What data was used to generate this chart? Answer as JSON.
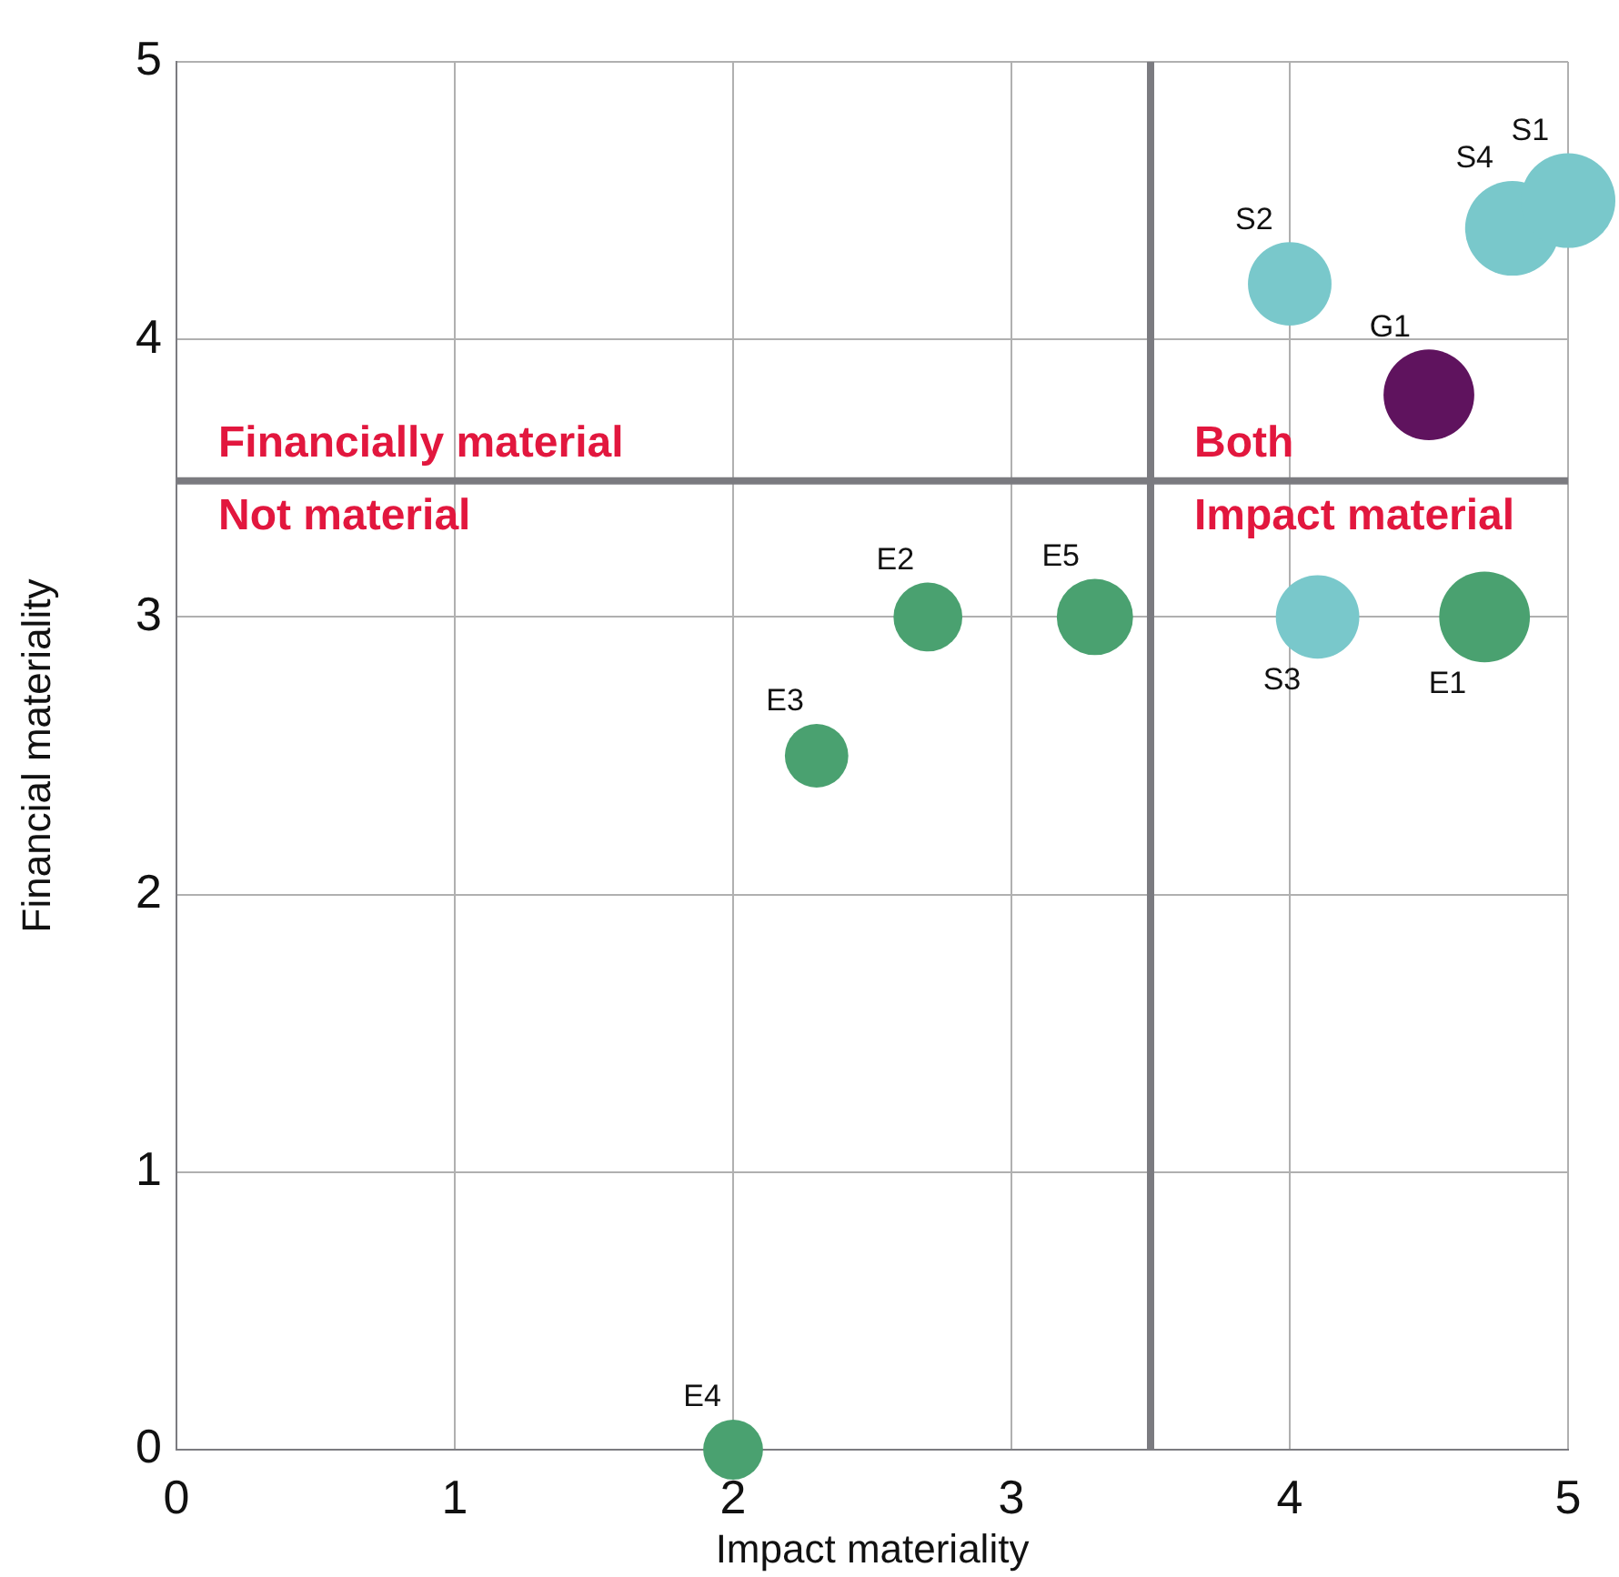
{
  "chart_data": {
    "type": "bubble",
    "xlabel": "Impact materiality",
    "ylabel": "Financial materiality",
    "xlim": [
      0,
      5
    ],
    "ylim": [
      0,
      5
    ],
    "xticks": [
      0,
      1,
      2,
      3,
      4,
      5
    ],
    "yticks": [
      0,
      1,
      2,
      3,
      4,
      5
    ],
    "grid": true,
    "legend": false,
    "series": [
      {
        "name": "S1",
        "color": "#79c8cb",
        "x": [
          5.0
        ],
        "values": [
          4.5
        ],
        "sizes": [
          1
        ]
      },
      {
        "name": "S4",
        "color": "#79c8cb",
        "x": [
          4.8
        ],
        "values": [
          4.4
        ],
        "sizes": [
          1
        ]
      },
      {
        "name": "S2",
        "color": "#79c8cb",
        "x": [
          4.0
        ],
        "values": [
          4.2
        ],
        "sizes": [
          0.78
        ]
      },
      {
        "name": "G1",
        "color": "#5f135e",
        "x": [
          4.5
        ],
        "values": [
          3.8
        ],
        "sizes": [
          0.92
        ]
      },
      {
        "name": "S3",
        "color": "#79c8cb",
        "x": [
          4.1
        ],
        "values": [
          3.0
        ],
        "sizes": [
          0.78
        ]
      },
      {
        "name": "E1",
        "color": "#4aa170",
        "x": [
          4.7
        ],
        "values": [
          3.0
        ],
        "sizes": [
          0.92
        ]
      },
      {
        "name": "E5",
        "color": "#4aa170",
        "x": [
          3.3
        ],
        "values": [
          3.0
        ],
        "sizes": [
          0.65
        ]
      },
      {
        "name": "E2",
        "color": "#4aa170",
        "x": [
          2.7
        ],
        "values": [
          3.0
        ],
        "sizes": [
          0.53
        ]
      },
      {
        "name": "E3",
        "color": "#4aa170",
        "x": [
          2.3
        ],
        "values": [
          2.5
        ],
        "sizes": [
          0.45
        ]
      },
      {
        "name": "E4",
        "color": "#4aa170",
        "x": [
          2.0
        ],
        "values": [
          0.0
        ],
        "sizes": [
          0.4
        ]
      }
    ],
    "ref_lines": [
      {
        "axis": "x",
        "value": 3.5,
        "color": "#7b7b80"
      },
      {
        "axis": "y",
        "value": 3.49,
        "color": "#7b7b80"
      }
    ],
    "annotations": [
      "Financially material",
      "Not material",
      "Both",
      "Impact material"
    ]
  }
}
